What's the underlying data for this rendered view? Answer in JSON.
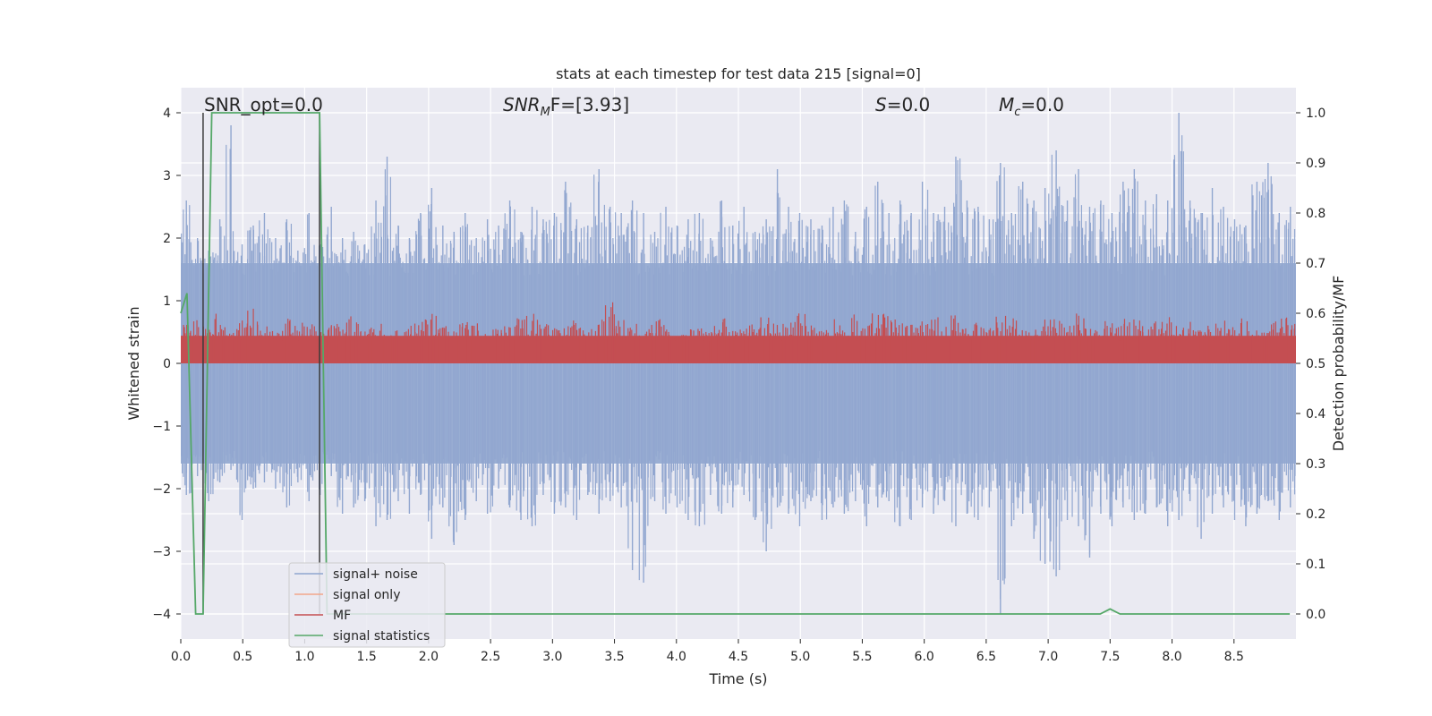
{
  "chart_data": {
    "type": "line",
    "title": "stats at each timestep for test data 215 [signal=0]",
    "xlabel": "Time (s)",
    "ylabel": "Whitened strain",
    "y2label": "Detection probability/MF",
    "xlim": [
      0,
      9.0
    ],
    "ylim": [
      -4.4,
      4.4
    ],
    "y2lim": [
      -0.05,
      1.05
    ],
    "xticks": [
      "0.0",
      "0.5",
      "1.0",
      "1.5",
      "2.0",
      "2.5",
      "3.0",
      "3.5",
      "4.0",
      "4.5",
      "5.0",
      "5.5",
      "6.0",
      "6.5",
      "7.0",
      "7.5",
      "8.0",
      "8.5"
    ],
    "yticks": [
      "−4",
      "−3",
      "−2",
      "−1",
      "0",
      "1",
      "2",
      "3",
      "4"
    ],
    "y2ticks": [
      "0.0",
      "0.1",
      "0.2",
      "0.3",
      "0.4",
      "0.5",
      "0.6",
      "0.7",
      "0.8",
      "0.9",
      "1.0"
    ],
    "grid": true,
    "annotations": {
      "snr_opt": "SNR_opt=0.0",
      "snr_mf_main": "SNR",
      "snr_mf_sub": "M",
      "snr_mf_rest": "F=[3.93]",
      "s": "S",
      "s_rest": "=0.0",
      "mc_main": "M",
      "mc_sub": "c",
      "mc_rest": "=0.0"
    },
    "legend": {
      "position": "lower-left",
      "entries": [
        {
          "name": "signal+ noise",
          "color": "#8fa6cf"
        },
        {
          "name": "signal only",
          "color": "#f2a68a"
        },
        {
          "name": "MF",
          "color": "#c44e52"
        },
        {
          "name": "signal statistics",
          "color": "#55a868"
        }
      ]
    },
    "series": [
      {
        "name": "signal+ noise",
        "axis": "left",
        "description": "noise envelope",
        "envelope_upper": [
          2.6,
          2.0,
          1.8,
          2.3,
          3.8,
          1.9,
          2.2,
          2.4,
          2.0,
          2.3,
          1.8,
          2.4,
          1.9,
          2.5,
          2.0,
          2.1,
          1.9,
          2.6,
          3.3,
          2.2,
          2.0,
          2.4,
          2.8,
          2.2,
          2.1,
          2.4,
          2.0,
          2.3,
          2.2,
          2.6,
          2.1,
          2.5,
          2.3,
          2.4,
          2.9,
          2.3,
          2.2,
          3.1,
          2.5,
          2.4,
          2.6,
          2.4,
          2.1,
          2.5,
          2.2,
          2.3,
          2.4,
          2.0,
          2.6,
          2.2,
          2.5,
          2.1,
          2.3,
          3.1,
          2.5,
          2.4,
          2.3,
          2.2,
          2.5,
          2.6,
          2.1,
          2.5,
          2.9,
          2.4,
          2.6,
          2.4,
          2.9,
          2.4,
          2.5,
          3.3,
          2.6,
          2.5,
          2.3,
          3.2,
          2.4,
          2.9,
          2.6,
          2.8,
          3.4,
          2.6,
          3.1,
          2.5,
          2.6,
          2.4,
          2.9,
          3.1,
          2.6,
          2.7,
          2.6,
          4.0,
          2.6,
          2.4,
          2.8,
          2.5,
          2.3,
          2.2,
          2.9,
          3.2,
          2.4,
          2.5
        ],
        "envelope_lower": [
          -2.1,
          -1.8,
          -2.2,
          -1.9,
          -1.7,
          -2.5,
          -2.0,
          -1.9,
          -2.0,
          -2.3,
          -1.9,
          -2.2,
          -2.1,
          -1.8,
          -2.4,
          -2.3,
          -2.2,
          -2.6,
          -2.5,
          -2.2,
          -2.4,
          -2.1,
          -2.8,
          -2.3,
          -2.9,
          -2.5,
          -2.2,
          -2.4,
          -2.0,
          -2.3,
          -2.5,
          -2.6,
          -2.1,
          -2.4,
          -2.3,
          -2.5,
          -2.1,
          -2.4,
          -2.2,
          -2.3,
          -3.3,
          -3.5,
          -2.2,
          -2.4,
          -2.3,
          -2.5,
          -2.6,
          -2.1,
          -2.4,
          -2.3,
          -2.1,
          -2.5,
          -3.0,
          -2.3,
          -2.4,
          -2.6,
          -2.2,
          -2.5,
          -2.3,
          -2.4,
          -2.2,
          -2.6,
          -2.3,
          -2.2,
          -2.6,
          -2.5,
          -2.3,
          -2.4,
          -2.2,
          -2.6,
          -2.4,
          -2.5,
          -2.3,
          -4.0,
          -2.6,
          -2.4,
          -2.8,
          -3.2,
          -3.4,
          -2.5,
          -2.6,
          -3.1,
          -2.4,
          -2.6,
          -2.3,
          -2.5,
          -2.4,
          -2.3,
          -2.6,
          -2.5,
          -2.2,
          -2.8,
          -2.4,
          -2.3,
          -2.5,
          -2.6,
          -2.4,
          -2.2,
          -2.5,
          -2.3
        ]
      },
      {
        "name": "MF",
        "axis": "right",
        "description": "matched filter band",
        "band_low": 0.5,
        "band_high": [
          0.58,
          0.6,
          0.58,
          0.6,
          0.57,
          0.59,
          0.61,
          0.58,
          0.57,
          0.6,
          0.59,
          0.58,
          0.57,
          0.58,
          0.59,
          0.6,
          0.57,
          0.58,
          0.56,
          0.57,
          0.58,
          0.59,
          0.6,
          0.58,
          0.57,
          0.59,
          0.58,
          0.56,
          0.57,
          0.58,
          0.59,
          0.6,
          0.58,
          0.57,
          0.58,
          0.59,
          0.58,
          0.6,
          0.63,
          0.59,
          0.58,
          0.57,
          0.59,
          0.58,
          0.56,
          0.58,
          0.57,
          0.58,
          0.59,
          0.58,
          0.57,
          0.58,
          0.6,
          0.58,
          0.59,
          0.6,
          0.58,
          0.57,
          0.59,
          0.58,
          0.6,
          0.58,
          0.6,
          0.61,
          0.59,
          0.58,
          0.59,
          0.6,
          0.58,
          0.6,
          0.57,
          0.59,
          0.58,
          0.6,
          0.59,
          0.58,
          0.57,
          0.6,
          0.59,
          0.58,
          0.6,
          0.57,
          0.59,
          0.58,
          0.6,
          0.59,
          0.58,
          0.59,
          0.6,
          0.58,
          0.59,
          0.57,
          0.58,
          0.6,
          0.58,
          0.59,
          0.57,
          0.58,
          0.59,
          0.6
        ]
      },
      {
        "name": "signal statistics",
        "axis": "right",
        "x": [
          0.0,
          0.05,
          0.12,
          0.18,
          0.25,
          1.12,
          1.18,
          1.25,
          7.42,
          7.5,
          7.58,
          8.95
        ],
        "y": [
          0.6,
          0.64,
          0.0,
          0.0,
          1.0,
          1.0,
          0.0,
          0.0,
          0.0,
          0.01,
          0.0,
          0.0
        ]
      }
    ],
    "vlines": [
      0.18,
      1.12
    ]
  }
}
